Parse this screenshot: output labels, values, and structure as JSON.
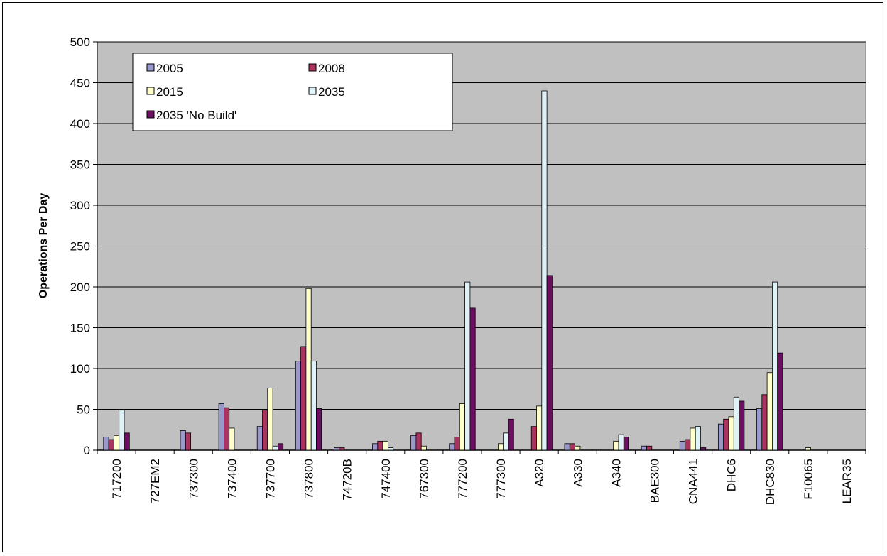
{
  "chart_data": {
    "type": "bar",
    "title": "",
    "xlabel": "",
    "ylabel": "Operations Per Day",
    "ylim": [
      0,
      500
    ],
    "yticks": [
      0,
      50,
      100,
      150,
      200,
      250,
      300,
      350,
      400,
      450,
      500
    ],
    "grid": true,
    "legend_position": "top-left",
    "categories": [
      "717200",
      "727EM2",
      "737300",
      "737400",
      "737700",
      "737800",
      "74720B",
      "747400",
      "767300",
      "777200",
      "777300",
      "A320",
      "A330",
      "A340",
      "BAE300",
      "CNA441",
      "DHC6",
      "DHC830",
      "F10065",
      "LEAR35"
    ],
    "series": [
      {
        "name": "2005",
        "color": "#9999cc",
        "values": [
          16,
          0,
          24,
          57,
          29,
          109,
          3,
          8,
          18,
          8,
          0,
          0,
          8,
          0,
          5,
          11,
          32,
          51,
          0,
          0
        ]
      },
      {
        "name": "2008",
        "color": "#a8345f",
        "values": [
          13,
          0,
          21,
          52,
          49,
          127,
          3,
          11,
          21,
          16,
          0,
          29,
          8,
          0,
          5,
          13,
          38,
          68,
          0,
          0
        ]
      },
      {
        "name": "2015",
        "color": "#ffffcc",
        "values": [
          18,
          0,
          0,
          27,
          76,
          198,
          0,
          11,
          5,
          57,
          8,
          54,
          5,
          11,
          0,
          27,
          41,
          95,
          3,
          0
        ]
      },
      {
        "name": "2035",
        "color": "#dff2f8",
        "values": [
          49,
          0,
          0,
          0,
          5,
          109,
          0,
          3,
          0,
          206,
          21,
          440,
          0,
          19,
          0,
          29,
          65,
          206,
          0,
          0
        ]
      },
      {
        "name": "2035 'No Build'",
        "color": "#6b1060",
        "values": [
          21,
          0,
          0,
          0,
          8,
          51,
          0,
          0,
          0,
          174,
          38,
          214,
          0,
          16,
          0,
          3,
          60,
          119,
          0,
          0
        ]
      }
    ]
  }
}
